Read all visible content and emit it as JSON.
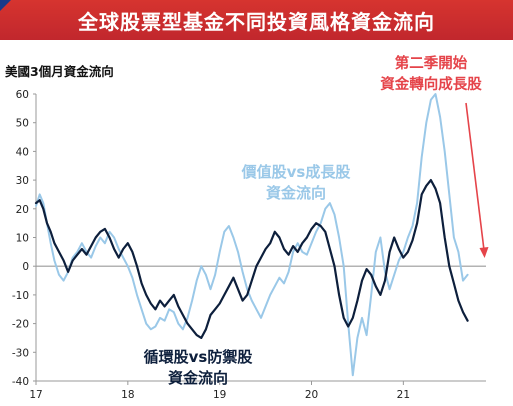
{
  "header": {
    "title": "全球股票型基金不同投資風格資金流向",
    "accent_color": "#c1272d"
  },
  "chart_data": {
    "type": "line",
    "title": "全球股票型基金不同投資風格資金流向",
    "subtitle": "美國3個月資金流向",
    "xlabel": "",
    "ylabel": "",
    "ylim": [
      -40,
      60
    ],
    "yticks": [
      "60",
      "50",
      "40",
      "30",
      "20",
      "10",
      "0",
      "-10",
      "-20",
      "-30",
      "-40"
    ],
    "xlim": [
      2017.0,
      2021.9
    ],
    "xticks": [
      "17",
      "18",
      "19",
      "20",
      "21"
    ],
    "grid": false,
    "annotations": {
      "red": [
        "第二季開始",
        "資金轉向成長股"
      ],
      "value_growth": [
        "價值股vs成長股",
        "資金流向"
      ],
      "cyclical_defensive": [
        "循環股vs防禦股",
        "資金流向"
      ]
    },
    "series": [
      {
        "name": "價值股vs成長股",
        "color": "#9ac8e8",
        "x": [
          2017.0,
          2017.04,
          2017.08,
          2017.12,
          2017.16,
          2017.2,
          2017.25,
          2017.3,
          2017.35,
          2017.4,
          2017.45,
          2017.5,
          2017.55,
          2017.6,
          2017.65,
          2017.7,
          2017.75,
          2017.8,
          2017.85,
          2017.9,
          2017.95,
          2018.0,
          2018.05,
          2018.1,
          2018.15,
          2018.2,
          2018.25,
          2018.3,
          2018.35,
          2018.4,
          2018.45,
          2018.5,
          2018.55,
          2018.6,
          2018.65,
          2018.7,
          2018.75,
          2018.8,
          2018.85,
          2018.9,
          2018.95,
          2019.0,
          2019.05,
          2019.1,
          2019.15,
          2019.2,
          2019.25,
          2019.3,
          2019.35,
          2019.4,
          2019.45,
          2019.5,
          2019.55,
          2019.6,
          2019.65,
          2019.7,
          2019.75,
          2019.8,
          2019.85,
          2019.9,
          2019.95,
          2020.0,
          2020.05,
          2020.1,
          2020.15,
          2020.2,
          2020.25,
          2020.3,
          2020.35,
          2020.4,
          2020.45,
          2020.5,
          2020.55,
          2020.6,
          2020.65,
          2020.7,
          2020.75,
          2020.8,
          2020.85,
          2020.9,
          2020.95,
          2021.0,
          2021.05,
          2021.1,
          2021.15,
          2021.2,
          2021.25,
          2021.3,
          2021.35,
          2021.4,
          2021.45,
          2021.5,
          2021.55,
          2021.6,
          2021.65,
          2021.7
        ],
        "y": [
          21,
          25,
          22,
          15,
          8,
          2,
          -3,
          -5,
          -2,
          3,
          5,
          8,
          5,
          3,
          7,
          10,
          8,
          12,
          10,
          6,
          3,
          0,
          -4,
          -10,
          -15,
          -20,
          -22,
          -21,
          -18,
          -19,
          -15,
          -16,
          -20,
          -22,
          -18,
          -12,
          -5,
          0,
          -3,
          -8,
          -3,
          5,
          12,
          14,
          10,
          5,
          -2,
          -8,
          -12,
          -15,
          -18,
          -14,
          -10,
          -7,
          -4,
          -6,
          -2,
          5,
          8,
          5,
          4,
          8,
          12,
          15,
          20,
          22,
          18,
          10,
          0,
          -20,
          -38,
          -25,
          -18,
          -24,
          -10,
          5,
          10,
          -2,
          -8,
          -3,
          2,
          5,
          10,
          14,
          22,
          38,
          50,
          58,
          60,
          52,
          40,
          25,
          10,
          5,
          -5,
          -3
        ]
      },
      {
        "name": "循環股vs防禦股",
        "color": "#0d1f3c",
        "x": [
          2017.0,
          2017.04,
          2017.08,
          2017.12,
          2017.16,
          2017.2,
          2017.25,
          2017.3,
          2017.35,
          2017.4,
          2017.45,
          2017.5,
          2017.55,
          2017.6,
          2017.65,
          2017.7,
          2017.75,
          2017.8,
          2017.85,
          2017.9,
          2017.95,
          2018.0,
          2018.05,
          2018.1,
          2018.15,
          2018.2,
          2018.25,
          2018.3,
          2018.35,
          2018.4,
          2018.45,
          2018.5,
          2018.55,
          2018.6,
          2018.65,
          2018.7,
          2018.75,
          2018.8,
          2018.85,
          2018.9,
          2018.95,
          2019.0,
          2019.05,
          2019.1,
          2019.15,
          2019.2,
          2019.25,
          2019.3,
          2019.35,
          2019.4,
          2019.45,
          2019.5,
          2019.55,
          2019.6,
          2019.65,
          2019.7,
          2019.75,
          2019.8,
          2019.85,
          2019.9,
          2019.95,
          2020.0,
          2020.05,
          2020.1,
          2020.15,
          2020.2,
          2020.25,
          2020.3,
          2020.35,
          2020.4,
          2020.45,
          2020.5,
          2020.55,
          2020.6,
          2020.65,
          2020.7,
          2020.75,
          2020.8,
          2020.85,
          2020.9,
          2020.95,
          2021.0,
          2021.05,
          2021.1,
          2021.15,
          2021.2,
          2021.25,
          2021.3,
          2021.35,
          2021.4,
          2021.45,
          2021.5,
          2021.55,
          2021.6,
          2021.65,
          2021.7
        ],
        "y": [
          22,
          23,
          20,
          15,
          12,
          8,
          5,
          2,
          -2,
          2,
          4,
          6,
          4,
          7,
          10,
          12,
          13,
          10,
          6,
          3,
          6,
          8,
          5,
          0,
          -6,
          -10,
          -13,
          -15,
          -12,
          -14,
          -12,
          -10,
          -14,
          -17,
          -20,
          -22,
          -24,
          -25,
          -22,
          -17,
          -15,
          -13,
          -10,
          -7,
          -4,
          -8,
          -12,
          -10,
          -5,
          0,
          3,
          6,
          8,
          12,
          10,
          6,
          4,
          7,
          5,
          8,
          10,
          13,
          15,
          14,
          12,
          6,
          0,
          -10,
          -18,
          -21,
          -18,
          -12,
          -5,
          -1,
          -3,
          -7,
          -10,
          -5,
          5,
          10,
          6,
          3,
          5,
          9,
          15,
          25,
          28,
          30,
          27,
          22,
          10,
          0,
          -6,
          -12,
          -16,
          -19
        ]
      }
    ]
  }
}
